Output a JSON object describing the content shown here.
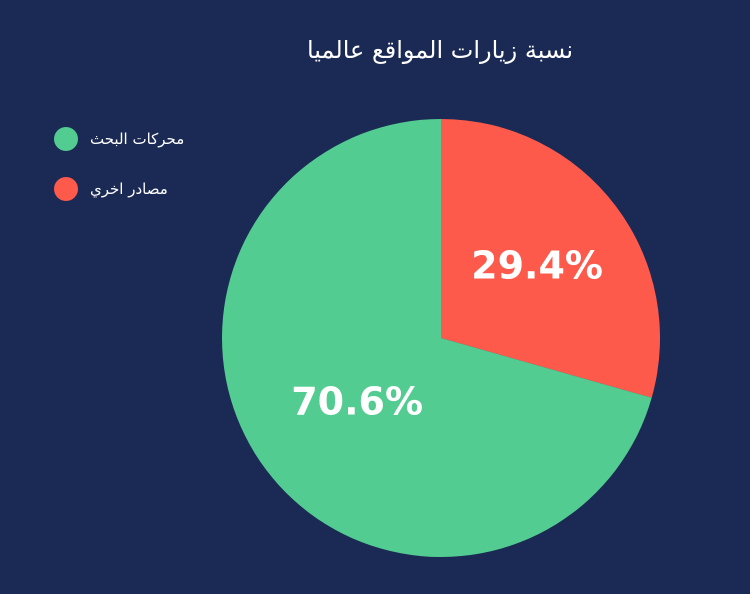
{
  "chart_data": {
    "type": "pie",
    "title": "نسبة زيارات المواقع عالميا",
    "legend_position": "top-left",
    "slices": [
      {
        "name": "مصادر اخري",
        "value": 29.4,
        "label": "29.4%",
        "color": "#fd5a4c"
      },
      {
        "name": "محركات البحث",
        "value": 70.6,
        "label": "70.6%",
        "color": "#53cc91"
      }
    ]
  },
  "legend": [
    {
      "label": "محركات البحث",
      "color": "#53cc91"
    },
    {
      "label": "مصادر اخري",
      "color": "#fd5a4c"
    }
  ],
  "colors": {
    "background": "#1b2a55",
    "text": "#ffffff"
  }
}
